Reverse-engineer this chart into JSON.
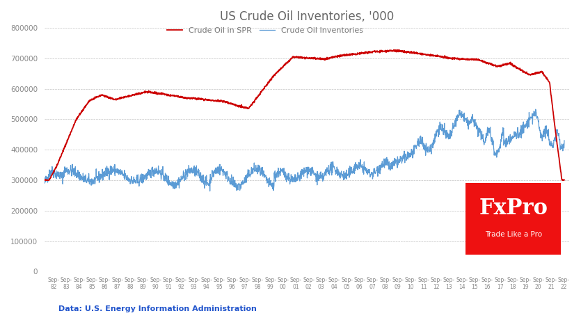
{
  "title": "US Crude Oil Inventories, '000",
  "spr_label": "Crude Oil in SPR",
  "inv_label": "Crude Oil Inventories",
  "spr_color": "#cc0000",
  "inv_color": "#5b9bd5",
  "source_text": "Data: U.S. Energy Information Administration",
  "ylim": [
    0,
    800000
  ],
  "yticks": [
    0,
    100000,
    200000,
    300000,
    400000,
    500000,
    600000,
    700000,
    800000
  ],
  "fxpro_bg": "#ee1111",
  "fxpro_text": "FxPro",
  "fxpro_sub": "Trade Like a Pro",
  "background_color": "#ffffff",
  "grid_color": "#bbbbbb",
  "title_color": "#666666",
  "source_color": "#2255cc"
}
